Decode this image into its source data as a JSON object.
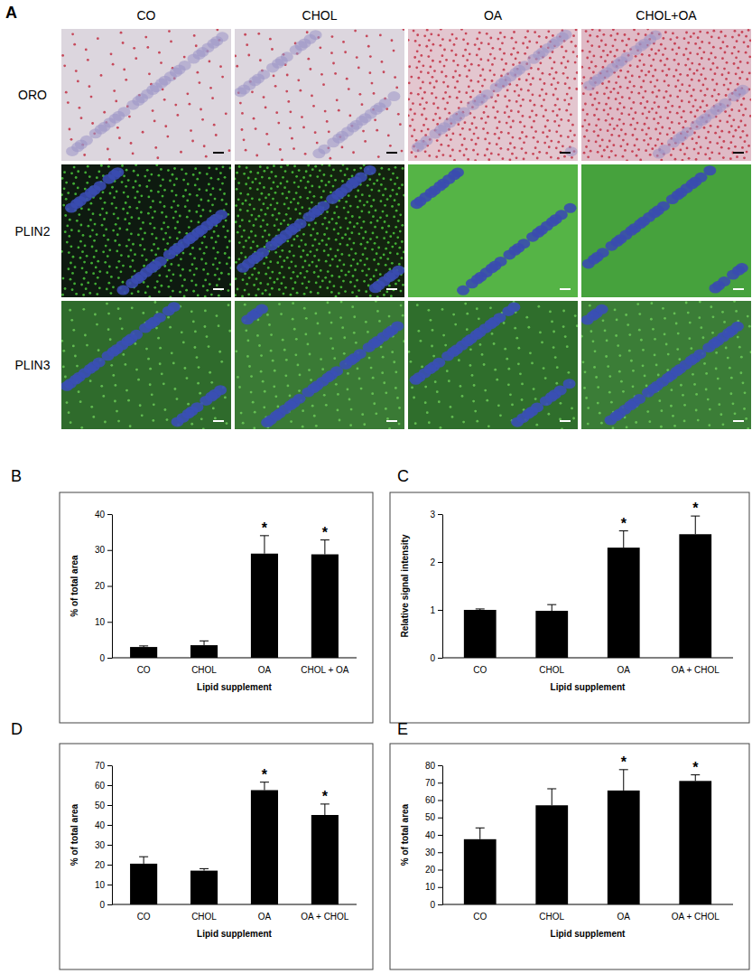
{
  "panel_a": {
    "letter": "A",
    "columns": [
      "CO",
      "CHOL",
      "OA",
      "CHOL+OA"
    ],
    "rows": [
      "ORO",
      "PLIN2",
      "PLIN3"
    ]
  },
  "chart_data": [
    {
      "type": "bar",
      "panel": "B",
      "y_label": "% of total area",
      "x_label": "Lipid supplement",
      "categories": [
        "CO",
        "CHOL",
        "OA",
        "CHOL + OA"
      ],
      "values": [
        3.0,
        3.5,
        29.0,
        28.8
      ],
      "errors": [
        0.3,
        1.2,
        5.0,
        4.0
      ],
      "significance": [
        null,
        null,
        "*",
        "*"
      ],
      "color": "#000000",
      "grid": false,
      "ylim": [
        0,
        40
      ],
      "yticks": [
        0,
        10,
        20,
        30,
        40
      ]
    },
    {
      "type": "bar",
      "panel": "C",
      "y_label": "Relative signal intensity",
      "x_label": "Lipid supplement",
      "categories": [
        "CO",
        "CHOL",
        "OA",
        "OA + CHOL"
      ],
      "values": [
        1.0,
        0.98,
        2.3,
        2.58
      ],
      "errors": [
        0.02,
        0.13,
        0.35,
        0.38
      ],
      "significance": [
        null,
        null,
        "*",
        "*"
      ],
      "color": "#000000",
      "grid": false,
      "ylim": [
        0,
        3
      ],
      "yticks": [
        0,
        1,
        2,
        3
      ]
    },
    {
      "type": "bar",
      "panel": "D",
      "y_label": "% of total area",
      "x_label": "Lipid supplement",
      "categories": [
        "CO",
        "CHOL",
        "OA",
        "OA + CHOL"
      ],
      "values": [
        20.5,
        17.0,
        57.5,
        45.0
      ],
      "errors": [
        3.5,
        1.0,
        4.0,
        5.5
      ],
      "significance": [
        null,
        null,
        "*",
        "*"
      ],
      "color": "#000000",
      "grid": false,
      "ylim": [
        0,
        70
      ],
      "yticks": [
        0,
        10,
        20,
        30,
        40,
        50,
        60,
        70
      ]
    },
    {
      "type": "bar",
      "panel": "E",
      "y_label": "% of total area",
      "x_label": "Lipid supplement",
      "categories": [
        "CO",
        "CHOL",
        "OA",
        "OA + CHOL"
      ],
      "values": [
        37.5,
        57.0,
        65.5,
        71.0
      ],
      "errors": [
        6.5,
        9.5,
        12.0,
        3.5
      ],
      "significance": [
        null,
        null,
        "*",
        "*"
      ],
      "color": "#000000",
      "grid": false,
      "ylim": [
        0,
        80
      ],
      "yticks": [
        0,
        10,
        20,
        30,
        40,
        50,
        60,
        70,
        80
      ]
    }
  ]
}
